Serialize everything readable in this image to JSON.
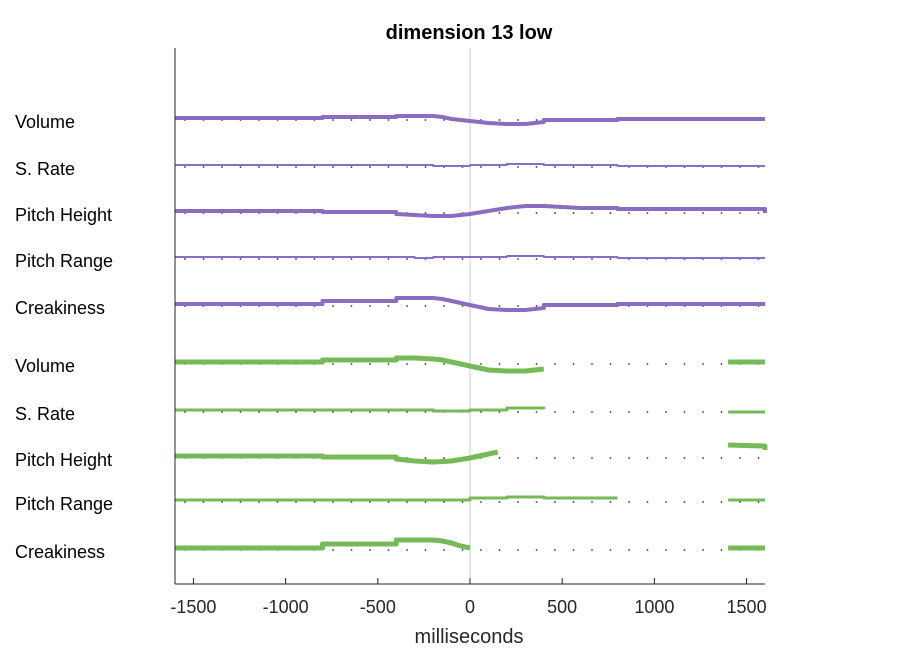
{
  "chart_data": {
    "type": "line",
    "title": "dimension 13 low",
    "xlabel": "milliseconds",
    "ylabel": "",
    "xlim": [
      -1600,
      1600
    ],
    "xticks": [
      -1500,
      -1000,
      -500,
      0,
      500,
      1000,
      1500
    ],
    "xtick_labels": [
      "-1500",
      "-1000",
      "-500",
      "0",
      "500",
      "1000",
      "1500"
    ],
    "zero_line": true,
    "reference_dots": true,
    "colors": {
      "purple": "#8a6cc0",
      "green": "#78b957",
      "axis": "#262626",
      "zero": "#cccccc",
      "dots": "#333333"
    },
    "rows": [
      {
        "label": "Volume",
        "color": "purple",
        "width": 4,
        "segments": [
          [
            [
              -1600,
              0
            ],
            [
              -800,
              0
            ],
            [
              -800,
              -1
            ],
            [
              -400,
              -1
            ],
            [
              -400,
              -2
            ],
            [
              -200,
              -2
            ],
            [
              -150,
              -1
            ],
            [
              -100,
              1
            ],
            [
              -50,
              2
            ],
            [
              0,
              3
            ],
            [
              50,
              4
            ],
            [
              100,
              5
            ],
            [
              200,
              6
            ],
            [
              300,
              6
            ],
            [
              350,
              5
            ],
            [
              400,
              4
            ],
            [
              400,
              2
            ],
            [
              800,
              2
            ],
            [
              800,
              1
            ],
            [
              1600,
              1
            ]
          ]
        ]
      },
      {
        "label": "S. Rate",
        "color": "purple",
        "width": 2,
        "segments": [
          [
            [
              -1600,
              0
            ],
            [
              -200,
              0
            ],
            [
              -200,
              1
            ],
            [
              0,
              1
            ],
            [
              0,
              0
            ],
            [
              200,
              0
            ],
            [
              200,
              -1
            ],
            [
              400,
              -1
            ],
            [
              400,
              0
            ],
            [
              800,
              0
            ],
            [
              800,
              1
            ],
            [
              1600,
              1
            ]
          ]
        ]
      },
      {
        "label": "Pitch Height",
        "color": "purple",
        "width": 4,
        "segments": [
          [
            [
              -1600,
              0
            ],
            [
              -800,
              0
            ],
            [
              -800,
              1
            ],
            [
              -400,
              1
            ],
            [
              -400,
              3
            ],
            [
              -300,
              4
            ],
            [
              -200,
              5
            ],
            [
              -100,
              5
            ],
            [
              0,
              3
            ],
            [
              100,
              0
            ],
            [
              200,
              -3
            ],
            [
              300,
              -5
            ],
            [
              400,
              -5
            ],
            [
              500,
              -4
            ],
            [
              600,
              -3
            ],
            [
              800,
              -3
            ],
            [
              800,
              -2
            ],
            [
              1600,
              -2
            ],
            [
              1600,
              2
            ]
          ]
        ]
      },
      {
        "label": "Pitch Range",
        "color": "purple",
        "width": 2,
        "segments": [
          [
            [
              -1600,
              0
            ],
            [
              -300,
              0
            ],
            [
              -300,
              1
            ],
            [
              -200,
              1
            ],
            [
              -200,
              0
            ],
            [
              200,
              0
            ],
            [
              200,
              -1
            ],
            [
              400,
              -1
            ],
            [
              400,
              0
            ],
            [
              800,
              0
            ],
            [
              800,
              1
            ],
            [
              1600,
              1
            ]
          ]
        ]
      },
      {
        "label": "Creakiness",
        "color": "purple",
        "width": 4,
        "segments": [
          [
            [
              -1600,
              0
            ],
            [
              -800,
              0
            ],
            [
              -800,
              -3
            ],
            [
              -400,
              -3
            ],
            [
              -400,
              -6
            ],
            [
              -200,
              -6
            ],
            [
              -150,
              -5
            ],
            [
              -100,
              -3
            ],
            [
              -50,
              -1
            ],
            [
              0,
              1
            ],
            [
              50,
              3
            ],
            [
              100,
              5
            ],
            [
              200,
              6
            ],
            [
              300,
              6
            ],
            [
              350,
              5
            ],
            [
              400,
              4
            ],
            [
              400,
              1
            ],
            [
              800,
              1
            ],
            [
              800,
              0
            ],
            [
              1600,
              0
            ]
          ]
        ]
      },
      {
        "label": "Volume",
        "color": "green",
        "width": 5,
        "segments": [
          [
            [
              -1600,
              0
            ],
            [
              -800,
              0
            ],
            [
              -800,
              -2
            ],
            [
              -400,
              -2
            ],
            [
              -400,
              -4
            ],
            [
              -300,
              -4
            ],
            [
              -200,
              -3
            ],
            [
              -150,
              -2
            ],
            [
              -100,
              0
            ],
            [
              -50,
              2
            ],
            [
              0,
              4
            ],
            [
              50,
              6
            ],
            [
              100,
              8
            ],
            [
              200,
              9
            ],
            [
              300,
              9
            ],
            [
              350,
              8
            ],
            [
              400,
              7
            ]
          ],
          [
            [
              1400,
              0
            ],
            [
              1600,
              0
            ]
          ]
        ]
      },
      {
        "label": "S. Rate",
        "color": "green",
        "width": 3,
        "segments": [
          [
            [
              -1600,
              0
            ],
            [
              -200,
              0
            ],
            [
              -200,
              1
            ],
            [
              0,
              1
            ],
            [
              0,
              0
            ],
            [
              200,
              0
            ],
            [
              200,
              -2
            ],
            [
              400,
              -2
            ],
            [
              400,
              -1
            ]
          ],
          [
            [
              1400,
              2
            ],
            [
              1600,
              2
            ]
          ]
        ]
      },
      {
        "label": "Pitch Height",
        "color": "green",
        "width": 5,
        "segments": [
          [
            [
              -1600,
              0
            ],
            [
              -800,
              0
            ],
            [
              -800,
              1
            ],
            [
              -400,
              1
            ],
            [
              -400,
              3
            ],
            [
              -300,
              5
            ],
            [
              -200,
              6
            ],
            [
              -100,
              5
            ],
            [
              0,
              2
            ],
            [
              50,
              0
            ],
            [
              100,
              -2
            ],
            [
              150,
              -4
            ]
          ],
          [
            [
              1400,
              -11
            ],
            [
              1600,
              -10
            ],
            [
              1600,
              -6
            ]
          ]
        ]
      },
      {
        "label": "Pitch Range",
        "color": "green",
        "width": 3,
        "segments": [
          [
            [
              -1600,
              0
            ],
            [
              0,
              0
            ],
            [
              0,
              -2
            ],
            [
              200,
              -2
            ],
            [
              200,
              -3
            ],
            [
              400,
              -3
            ],
            [
              400,
              -2
            ],
            [
              800,
              -2
            ]
          ],
          [
            [
              1400,
              0
            ],
            [
              1600,
              0
            ]
          ]
        ]
      },
      {
        "label": "Creakiness",
        "color": "green",
        "width": 5,
        "segments": [
          [
            [
              -1600,
              0
            ],
            [
              -800,
              0
            ],
            [
              -800,
              -4
            ],
            [
              -400,
              -4
            ],
            [
              -400,
              -8
            ],
            [
              -200,
              -8
            ],
            [
              -150,
              -7
            ],
            [
              -100,
              -5
            ],
            [
              -50,
              -2
            ],
            [
              0,
              0
            ]
          ],
          [
            [
              1400,
              0
            ],
            [
              1600,
              0
            ]
          ]
        ]
      }
    ]
  }
}
